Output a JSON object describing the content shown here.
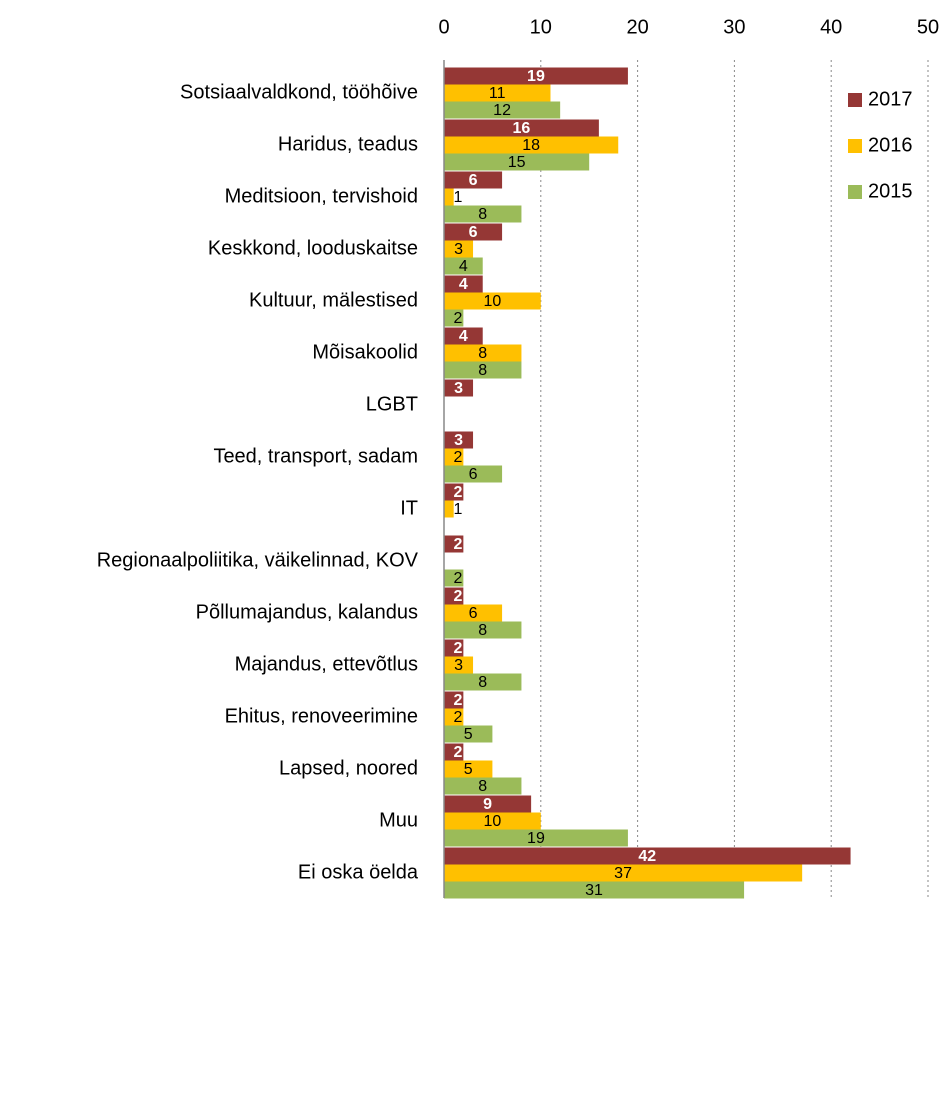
{
  "chart_data": {
    "type": "bar",
    "orientation": "horizontal",
    "categories": [
      "Sotsiaalvaldkond, tööhõive",
      "Haridus, teadus",
      "Meditsioon, tervishoid",
      "Keskkond, looduskaitse",
      "Kultuur, mälestised",
      "Mõisakoolid",
      "LGBT",
      "Teed, transport, sadam",
      "IT",
      "Regionaalpoliitika, väikelinnad, KOV",
      "Põllumajandus, kalandus",
      "Majandus, ettevõtlus",
      "Ehitus, renoveerimine",
      "Lapsed, noored",
      "Muu",
      "Ei oska öelda"
    ],
    "series": [
      {
        "name": "2017",
        "color": "#953735",
        "values": [
          19,
          16,
          6,
          6,
          4,
          4,
          3,
          3,
          2,
          2,
          2,
          2,
          2,
          2,
          9,
          42
        ]
      },
      {
        "name": "2016",
        "color": "#ffc000",
        "values": [
          11,
          18,
          1,
          3,
          10,
          8,
          null,
          2,
          1,
          null,
          6,
          3,
          2,
          5,
          10,
          37
        ]
      },
      {
        "name": "2015",
        "color": "#9bbb59",
        "values": [
          12,
          15,
          8,
          4,
          2,
          8,
          null,
          6,
          null,
          2,
          8,
          8,
          5,
          8,
          19,
          31
        ]
      }
    ],
    "xlim": [
      0,
      50
    ],
    "xticks": [
      0,
      10,
      20,
      30,
      40,
      50
    ],
    "grid": true,
    "legend": "upper right"
  }
}
